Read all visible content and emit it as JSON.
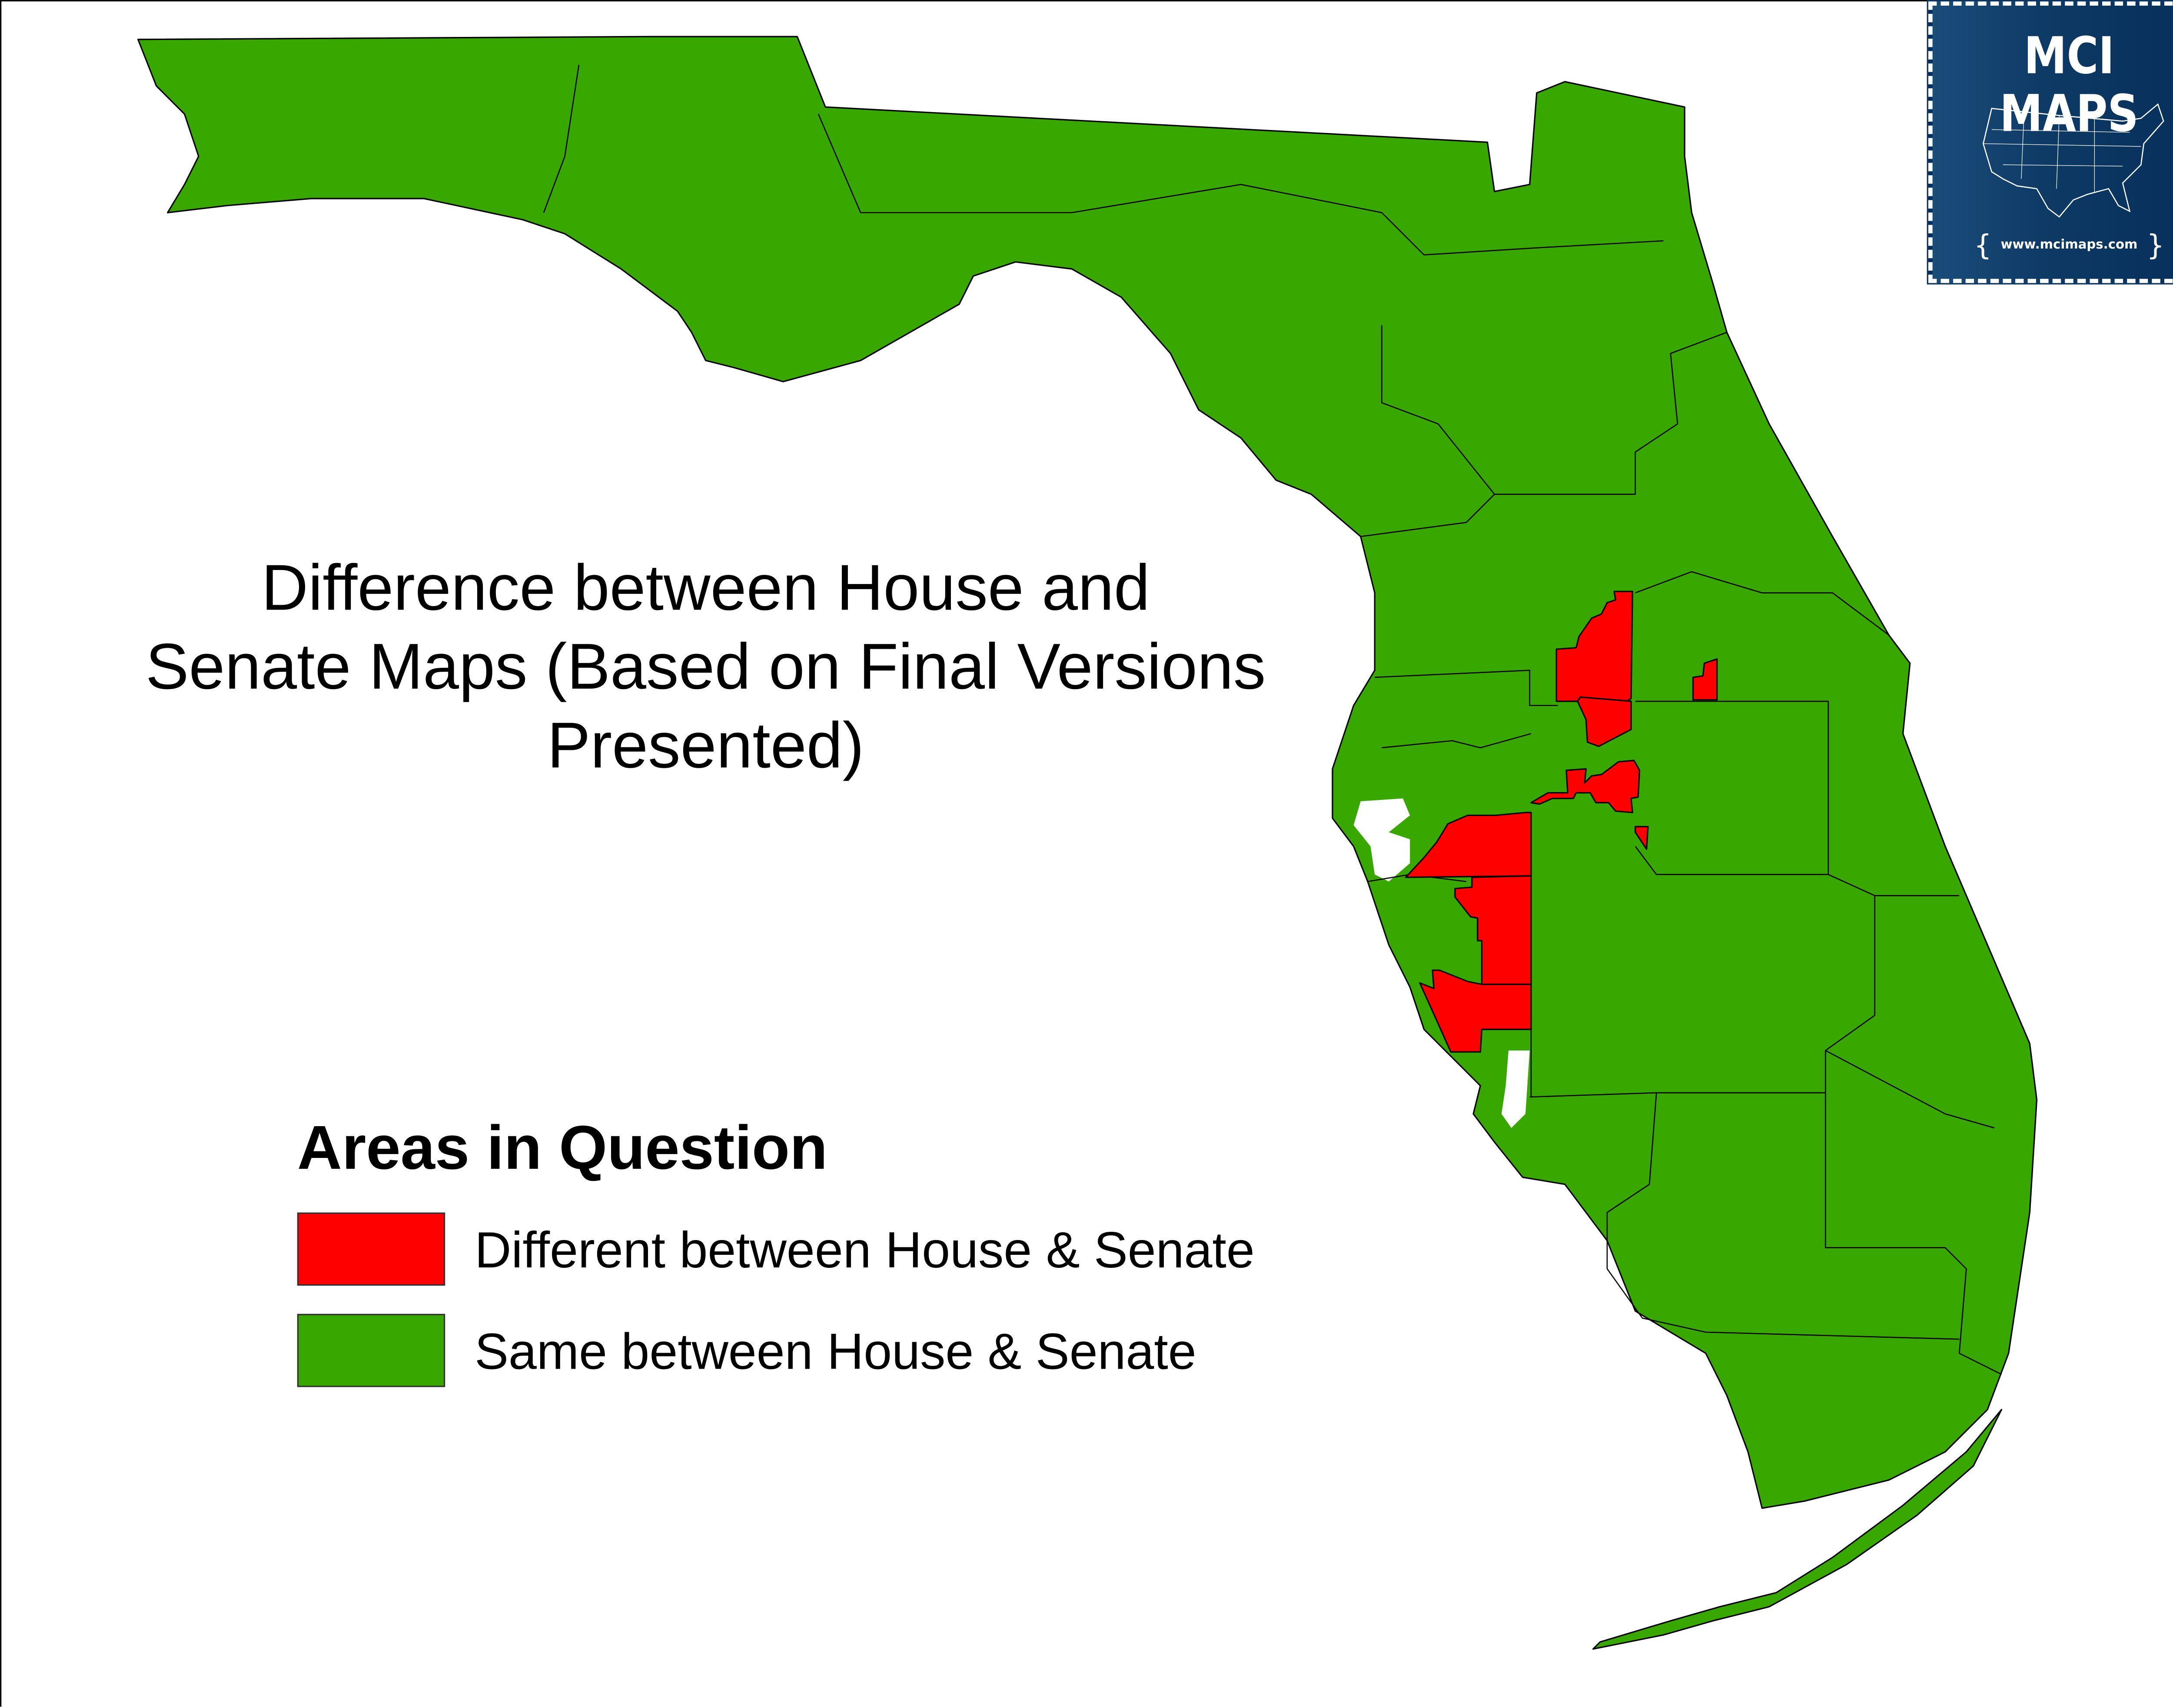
{
  "title": {
    "line1": "Difference between House and",
    "line2": "Senate Maps (Based on Final Versions",
    "line3": "Presented)"
  },
  "legend": {
    "title": "Areas in Question",
    "items": [
      {
        "label": "Different between House & Senate",
        "color": "#FF0000"
      },
      {
        "label": "Same between House & Senate",
        "color": "#38A800"
      }
    ]
  },
  "logo": {
    "brand": "MCI MAPS",
    "url": "www.mcimaps.com",
    "background": "#0E3A66"
  },
  "map": {
    "region": "Florida",
    "colors": {
      "same": "#38A800",
      "different": "#FF0000",
      "border": "#000000"
    }
  }
}
